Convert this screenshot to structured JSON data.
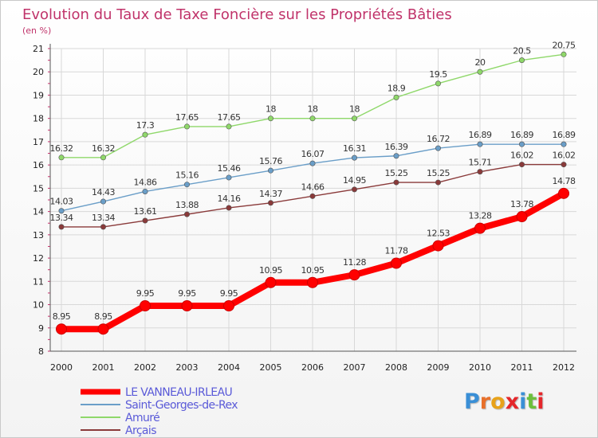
{
  "chart_data": {
    "type": "line",
    "title": "Evolution du Taux de Taxe Foncière sur les Propriétés Bâties",
    "subtitle": "(en %)",
    "x": [
      "2000",
      "2001",
      "2002",
      "2003",
      "2004",
      "2005",
      "2006",
      "2007",
      "2008",
      "2009",
      "2010",
      "2011",
      "2012"
    ],
    "ylim": [
      8,
      21
    ],
    "yticks": [
      "8",
      "9",
      "10",
      "11",
      "12",
      "13",
      "14",
      "15",
      "16",
      "17",
      "18",
      "19",
      "20",
      "21"
    ],
    "grid": true,
    "legend_position": "bottom-left",
    "series": [
      {
        "name": "LE VANNEAU-IRLEAU",
        "color": "#ff0000",
        "values": [
          8.95,
          8.95,
          9.95,
          9.95,
          9.95,
          10.95,
          10.95,
          11.28,
          11.78,
          12.53,
          13.28,
          13.78,
          14.78
        ],
        "labels": [
          "8.95",
          "8.95",
          "9.95",
          "9.95",
          "9.95",
          "10.95",
          "10.95",
          "11.28",
          "11.78",
          "12.53",
          "13.28",
          "13.78",
          "14.78"
        ]
      },
      {
        "name": "Saint-Georges-de-Rex",
        "color": "#6a9ec8",
        "values": [
          14.03,
          14.43,
          14.86,
          15.16,
          15.46,
          15.76,
          16.07,
          16.31,
          16.39,
          16.72,
          16.89,
          16.89,
          16.89
        ],
        "labels": [
          "14.03",
          "14.43",
          "14.86",
          "15.16",
          "15.46",
          "15.76",
          "16.07",
          "16.31",
          "16.39",
          "16.72",
          "16.89",
          "16.89",
          "16.89"
        ]
      },
      {
        "name": "Amuré",
        "color": "#8fd86a",
        "values": [
          16.32,
          16.32,
          17.3,
          17.65,
          17.65,
          18,
          18,
          18,
          18.9,
          19.5,
          20,
          20.5,
          20.75
        ],
        "labels": [
          "16.32",
          "16.32",
          "17.3",
          "17.65",
          "17.65",
          "18",
          "18",
          "18",
          "18.9",
          "19.5",
          "20",
          "20.5",
          "20.75"
        ]
      },
      {
        "name": "Arçais",
        "color": "#8a3a3a",
        "values": [
          13.34,
          13.34,
          13.61,
          13.88,
          14.16,
          14.37,
          14.66,
          14.95,
          15.25,
          15.25,
          15.71,
          16.02,
          16.02
        ],
        "labels": [
          "13.34",
          "13.34",
          "13.61",
          "13.88",
          "14.16",
          "14.37",
          "14.66",
          "14.95",
          "15.25",
          "15.25",
          "15.71",
          "16.02",
          "16.02"
        ]
      }
    ]
  },
  "logo": {
    "letters": [
      "P",
      "r",
      "o",
      "x",
      "i",
      "t",
      "i"
    ],
    "colors": [
      "#3a8fd6",
      "#e8702a",
      "#e8a21a",
      "#e4262a",
      "#3a8fd6",
      "#6cbf3c",
      "#e4262a"
    ]
  },
  "colors": {
    "title": "#c0336a",
    "grid": "#d8d8d8",
    "axis_text": "#222222"
  }
}
